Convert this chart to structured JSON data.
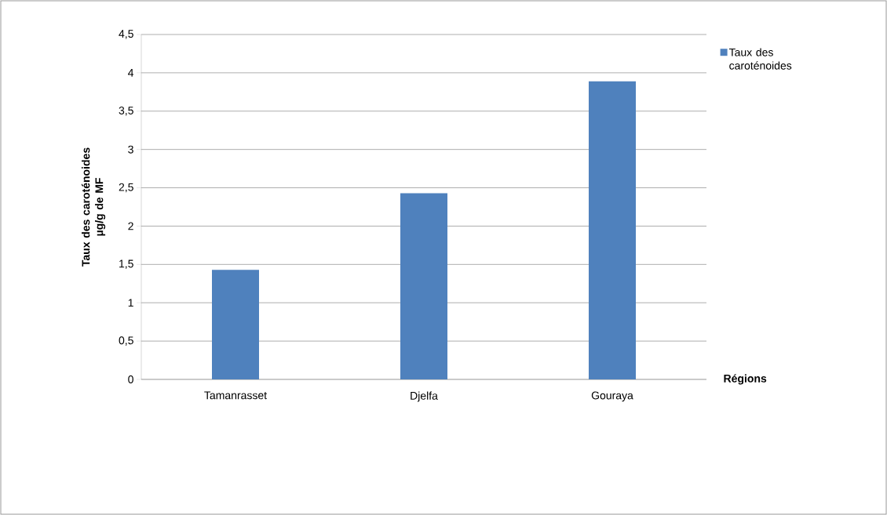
{
  "chart_data": {
    "type": "bar",
    "xlabel": "Régions",
    "ylabel": "Taux des caroténoides µg/g de MF",
    "categories": [
      "Tamanrasset",
      "Djelfa",
      "Gouraya"
    ],
    "series": [
      {
        "name": "Taux des caroténoides",
        "color": "#4f81bd",
        "values": [
          1.43,
          2.43,
          3.89
        ]
      }
    ],
    "ylim": [
      0,
      4.5
    ],
    "yticks": [
      0,
      {
        "value": 0.5,
        "label": "0,5"
      },
      1,
      {
        "value": 1.5,
        "label": "1,5"
      },
      2,
      {
        "value": 2.5,
        "label": "2,5"
      },
      3,
      {
        "value": 3.5,
        "label": "3,5"
      },
      4,
      {
        "value": 4.5,
        "label": "4,5"
      }
    ],
    "grid": "y",
    "legend": "top right"
  }
}
